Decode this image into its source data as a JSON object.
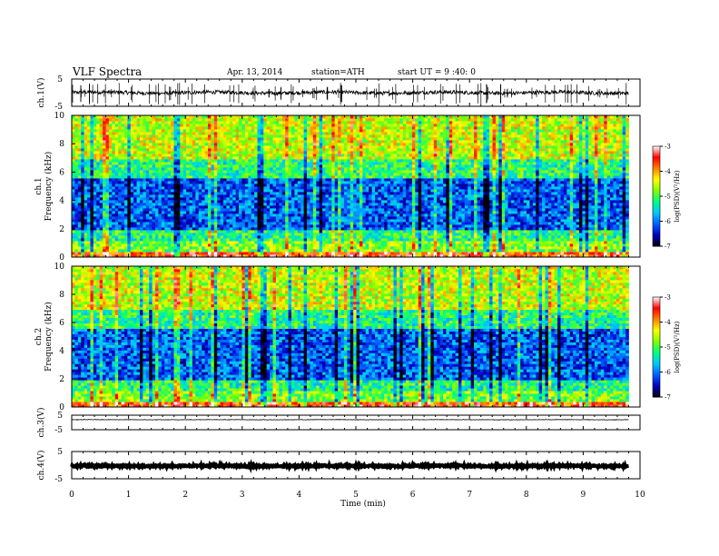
{
  "header": {
    "title": "VLF  Spectra",
    "date": "Apr. 13, 2014",
    "station": "station=ATH",
    "start": "start  UT  =   9 :40: 0"
  },
  "chart_data": [
    {
      "type": "line",
      "name": "ch1-waveform",
      "ylabel": "ch.1(V)",
      "ylim": [
        -5,
        5
      ],
      "yticks": [
        "5",
        "-5"
      ],
      "xlim": [
        0,
        10
      ],
      "x_extent": [
        0,
        9.8
      ],
      "baseline": 0.0,
      "noise_amplitude": 0.7,
      "spike_amplitude": 4.5
    },
    {
      "type": "heatmap",
      "name": "ch1-spectrogram",
      "ylabel": "ch.1\nFrequency  (kHz)",
      "ylabel_line1": "ch.1",
      "ylabel_line2": "Frequency  (kHz)",
      "ylim": [
        0,
        10
      ],
      "yticks": [
        "0",
        "2",
        "4",
        "6",
        "8",
        "10"
      ],
      "xlim": [
        0,
        10
      ],
      "x_extent": [
        0,
        9.8
      ],
      "colorbar": {
        "label": "log(PSD)(V²/Hz)",
        "range": [
          -7,
          -3
        ],
        "ticks": [
          "-3",
          "-4",
          "-5",
          "-6",
          "-7"
        ]
      }
    },
    {
      "type": "heatmap",
      "name": "ch2-spectrogram",
      "ylabel_line1": "ch.2",
      "ylabel_line2": "Frequency  (kHz)",
      "ylim": [
        0,
        10
      ],
      "yticks": [
        "0",
        "2",
        "4",
        "6",
        "8",
        "10"
      ],
      "xlim": [
        0,
        10
      ],
      "x_extent": [
        0,
        9.8
      ],
      "colorbar": {
        "label": "log(PSD)(V²/Hz)",
        "range": [
          -7,
          -3
        ],
        "ticks": [
          "-3",
          "-4",
          "-5",
          "-6",
          "-7"
        ]
      }
    },
    {
      "type": "line",
      "name": "ch3-waveform",
      "ylabel": "ch.3(V)",
      "ylim": [
        -5,
        5
      ],
      "yticks": [
        "5",
        "-5"
      ],
      "xlim": [
        0,
        10
      ],
      "x_extent": [
        0,
        9.8
      ],
      "baseline": 1.9,
      "noise_amplitude": 0.15
    },
    {
      "type": "line",
      "name": "ch4-waveform",
      "ylabel": "ch.4(V)",
      "ylim": [
        -5,
        5
      ],
      "yticks": [
        "5",
        "-5"
      ],
      "xlim": [
        0,
        10
      ],
      "x_extent": [
        0,
        9.8
      ],
      "baseline": -0.3,
      "noise_amplitude": 0.3
    }
  ],
  "xaxis": {
    "label": "Time  (min)",
    "ticks": [
      "0",
      "1",
      "2",
      "3",
      "4",
      "5",
      "6",
      "7",
      "8",
      "9",
      "10"
    ]
  },
  "colors": {
    "colormap": [
      "#000000",
      "#0000c8",
      "#0060ff",
      "#00c8ff",
      "#00ff80",
      "#80ff00",
      "#ffff00",
      "#ff8000",
      "#ff0000",
      "#ffffff"
    ]
  }
}
